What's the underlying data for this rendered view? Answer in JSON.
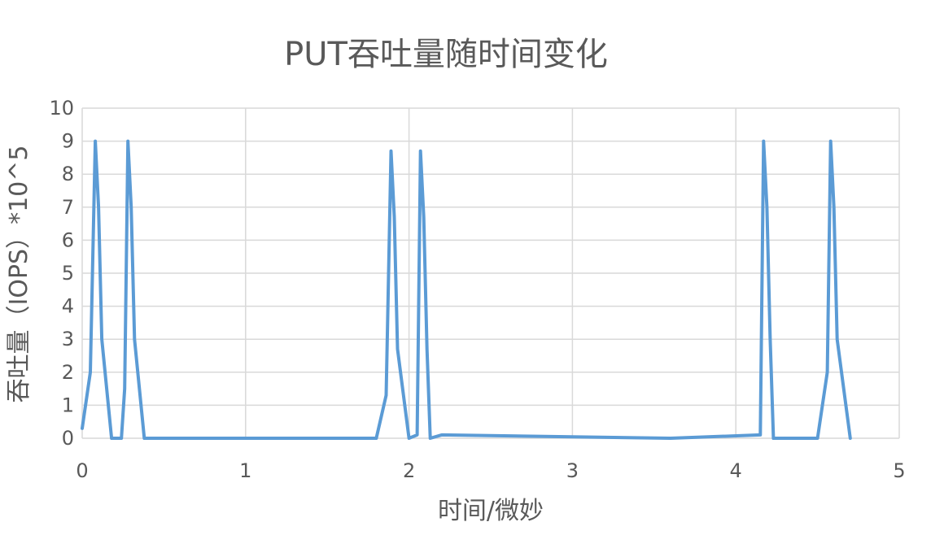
{
  "chart_data": {
    "type": "line",
    "title": "PUT吞吐量随时间变化",
    "xlabel": "时间/微妙",
    "ylabel": "吞吐量（IOPS）*10^5",
    "xlim": [
      0,
      5
    ],
    "ylim": [
      0,
      10
    ],
    "x_ticks": [
      "0",
      "1",
      "2",
      "3",
      "4",
      "5"
    ],
    "y_ticks": [
      "0",
      "1",
      "2",
      "3",
      "4",
      "5",
      "6",
      "7",
      "8",
      "9",
      "10"
    ],
    "grid": true,
    "legend": "none",
    "series": [
      {
        "color": "#5b9bd5",
        "x": [
          0.0,
          0.05,
          0.08,
          0.1,
          0.12,
          0.18,
          0.2,
          0.24,
          0.26,
          0.28,
          0.3,
          0.32,
          0.38,
          0.4,
          1.8,
          1.86,
          1.89,
          1.91,
          1.93,
          2.0,
          2.05,
          2.07,
          2.09,
          2.11,
          2.13,
          2.2,
          3.6,
          4.15,
          4.17,
          4.19,
          4.21,
          4.23,
          4.3,
          4.5,
          4.56,
          4.58,
          4.6,
          4.62,
          4.7
        ],
        "y": [
          0.3,
          2.0,
          9.0,
          7.0,
          3.0,
          0.0,
          0.0,
          0.0,
          1.5,
          9.0,
          7.0,
          3.0,
          0.0,
          0.0,
          0.0,
          1.3,
          8.7,
          6.7,
          2.7,
          0.0,
          0.1,
          8.7,
          6.7,
          2.7,
          0.0,
          0.1,
          0.0,
          0.1,
          9.0,
          7.0,
          3.0,
          0.0,
          0.0,
          0.0,
          2.0,
          9.0,
          7.0,
          3.0,
          0.0
        ]
      }
    ]
  }
}
